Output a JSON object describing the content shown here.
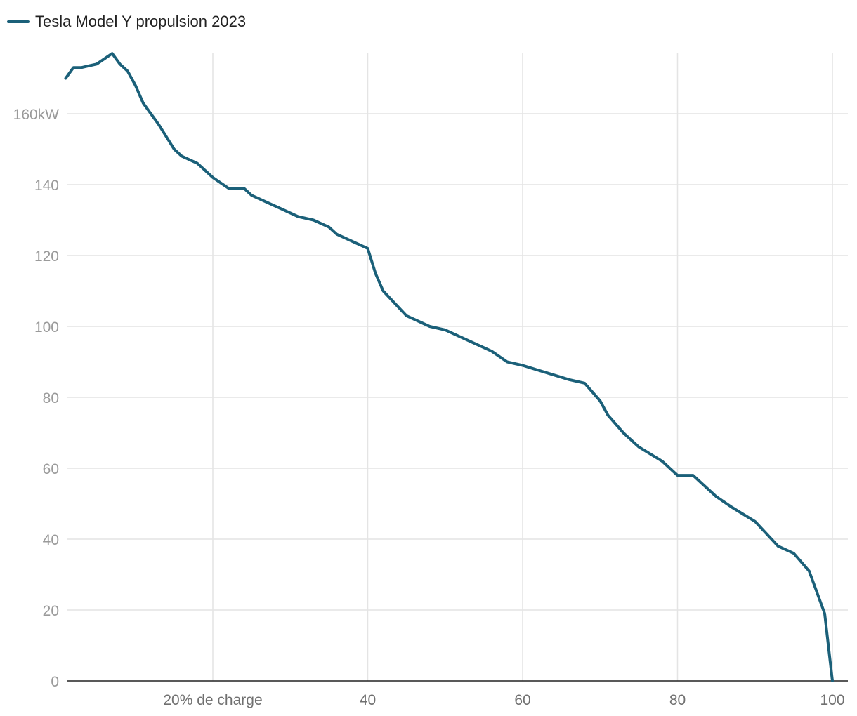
{
  "colors": {
    "series": "#1b6079",
    "grid": "#e4e4e4",
    "axis": "#222222"
  },
  "chart_data": {
    "type": "line",
    "xlim": [
      0,
      101
    ],
    "ylim": [
      0,
      177
    ],
    "x_ticks": [
      20,
      40,
      60,
      80,
      100
    ],
    "x_tick_labels": [
      "20% de charge",
      "40",
      "60",
      "80",
      "100"
    ],
    "y_ticks": [
      0,
      20,
      40,
      60,
      80,
      100,
      120,
      140,
      160
    ],
    "y_tick_labels": [
      "0",
      "20",
      "40",
      "60",
      "80",
      "100",
      "120",
      "140",
      "160kW"
    ],
    "grid": true,
    "legend": "top-left",
    "series": [
      {
        "name": "Tesla Model Y propulsion 2023",
        "x": [
          1,
          2,
          3,
          5,
          7,
          8,
          9,
          10,
          11,
          13,
          15,
          16,
          18,
          20,
          22,
          24,
          25,
          27,
          29,
          31,
          33,
          35,
          36,
          38,
          40,
          41,
          42,
          45,
          48,
          50,
          53,
          56,
          58,
          60,
          63,
          66,
          68,
          70,
          71,
          73,
          75,
          78,
          80,
          82,
          85,
          87,
          90,
          93,
          95,
          97,
          99,
          100
        ],
        "y": [
          170,
          173,
          173,
          174,
          177,
          174,
          172,
          168,
          163,
          157,
          150,
          148,
          146,
          142,
          139,
          139,
          137,
          135,
          133,
          131,
          130,
          128,
          126,
          124,
          122,
          115,
          110,
          103,
          100,
          99,
          96,
          93,
          90,
          89,
          87,
          85,
          84,
          79,
          75,
          70,
          66,
          62,
          58,
          58,
          52,
          49,
          45,
          38,
          36,
          31,
          19,
          0
        ]
      }
    ]
  }
}
